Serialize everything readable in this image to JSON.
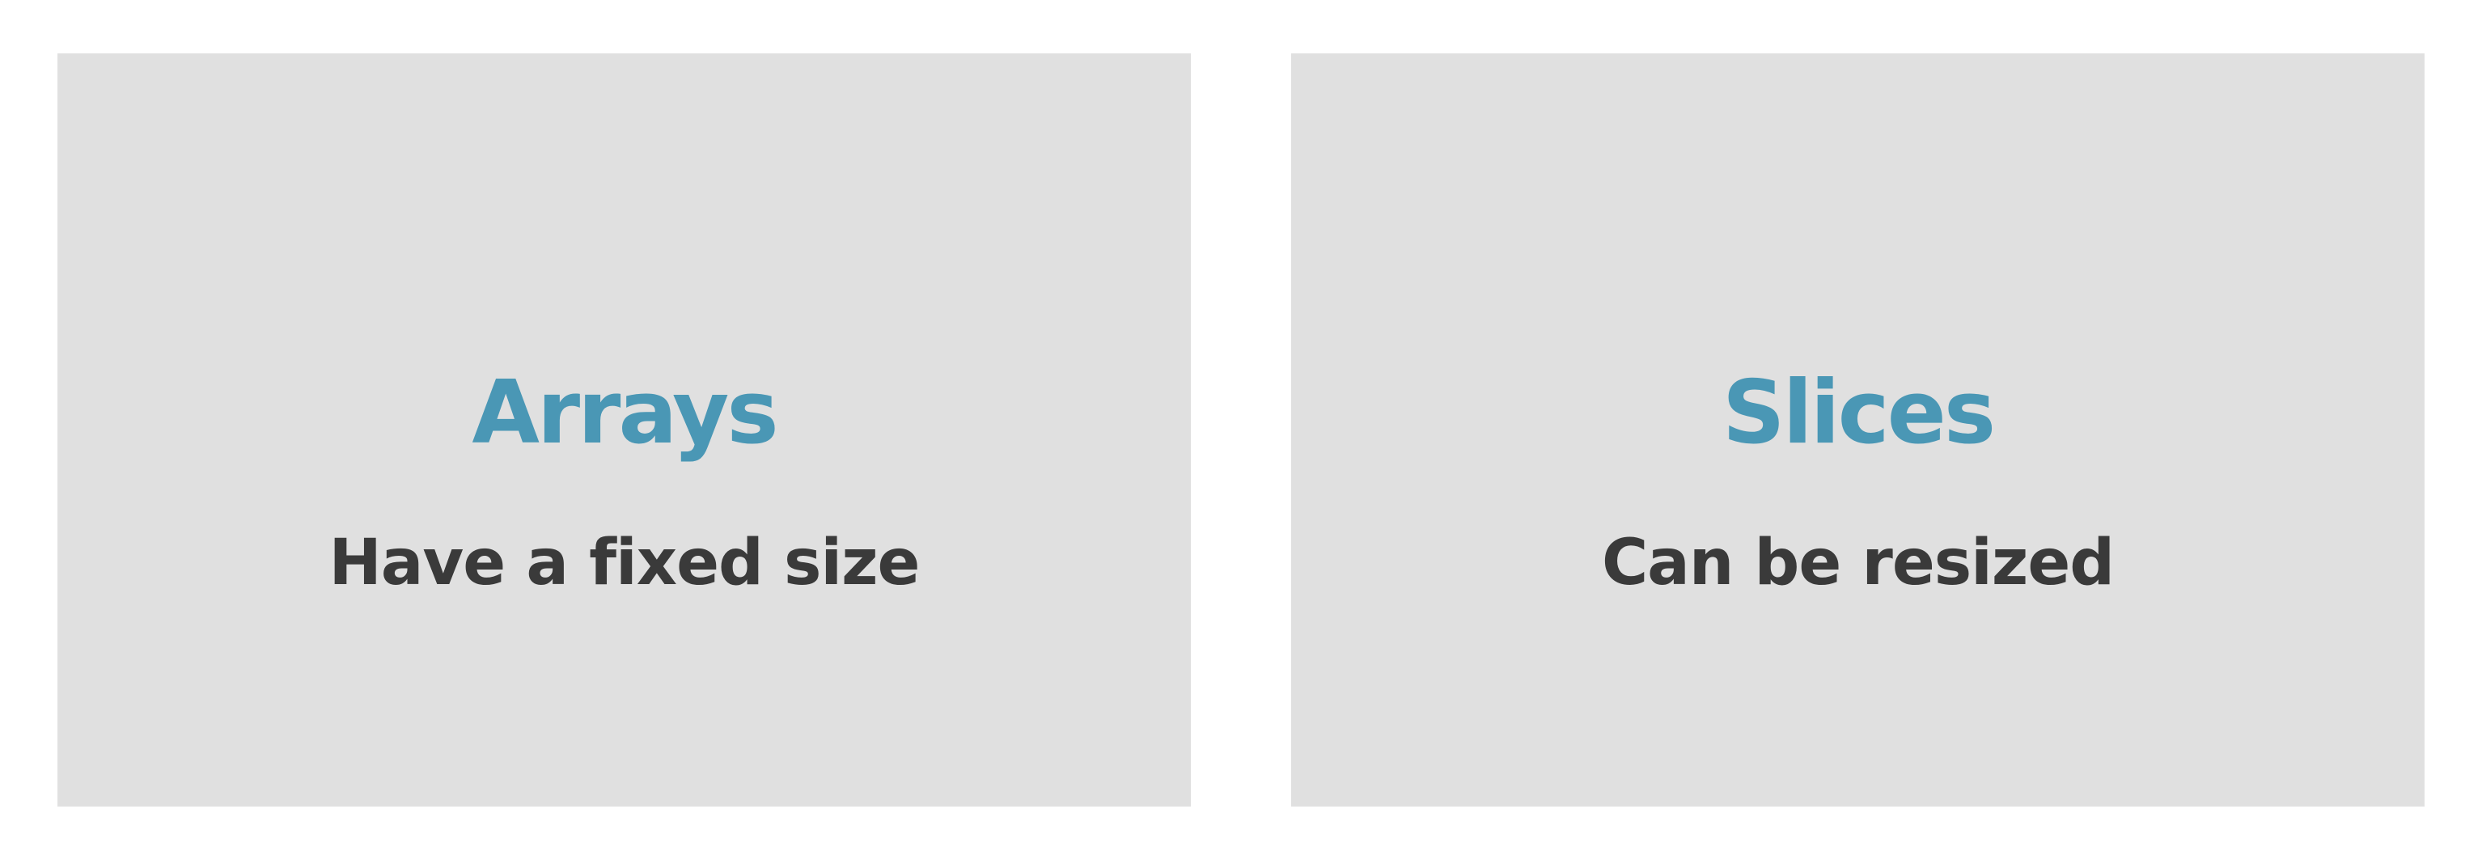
{
  "colors": {
    "background": "#ffffff",
    "panel_background": "#e0e0e0",
    "title": "#4a97b5",
    "subtitle": "#3a3a3a"
  },
  "panels": [
    {
      "title": "Arrays",
      "subtitle": "Have a fixed size"
    },
    {
      "title": "Slices",
      "subtitle": "Can be resized"
    }
  ]
}
